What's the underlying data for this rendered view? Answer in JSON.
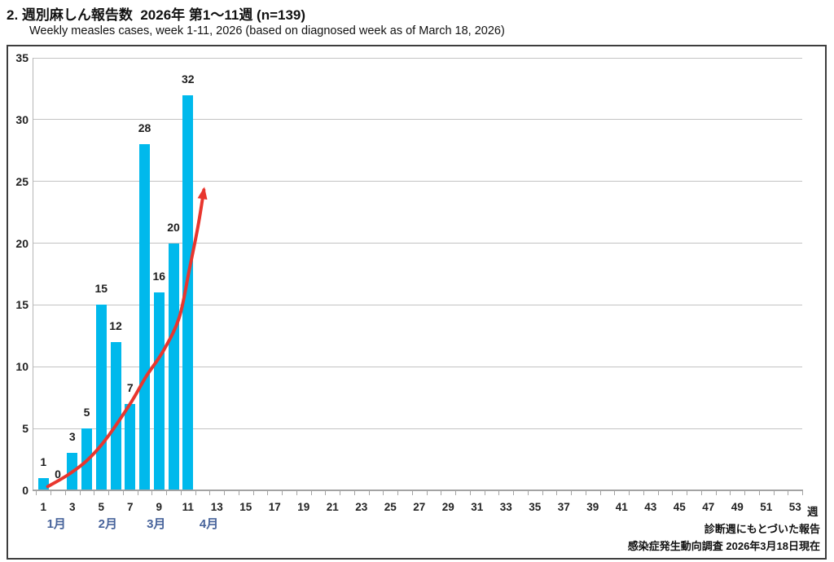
{
  "header": {
    "title": "2. 週別麻しん報告数  2026年 第1～11週 (n=139)",
    "subtitle": "Weekly measles cases, week 1-11, 2026 (based on diagnosed week as of March 18, 2026)"
  },
  "footer": {
    "line1": "診断週にもとづいた報告",
    "line2": "感染症発生動向調査 2026年3月18日現在"
  },
  "chart_data": {
    "type": "bar",
    "title": "2. 週別麻しん報告数  2026年 第1～11週 (n=139)",
    "subtitle": "Weekly measles cases, week 1-11, 2026 (based on diagnosed week as of March 18, 2026)",
    "n_total": 139,
    "xlabel_unit": "週",
    "weeks": [
      1,
      2,
      3,
      4,
      5,
      6,
      7,
      8,
      9,
      10,
      11
    ],
    "values": [
      1,
      0,
      3,
      5,
      15,
      12,
      7,
      28,
      16,
      20,
      32
    ],
    "x_tick_label_weeks": [
      1,
      3,
      5,
      7,
      9,
      11,
      13,
      15,
      17,
      19,
      21,
      23,
      25,
      27,
      29,
      31,
      33,
      35,
      37,
      39,
      41,
      43,
      45,
      47,
      49,
      51,
      53
    ],
    "x_axis_week_count": 53,
    "ylim": [
      0,
      35
    ],
    "y_ticks": [
      0,
      5,
      10,
      15,
      20,
      25,
      30,
      35
    ],
    "grid": true,
    "legend": "none",
    "months": [
      {
        "label": "1月",
        "week": 1.9
      },
      {
        "label": "2月",
        "week": 5.45
      },
      {
        "label": "3月",
        "week": 8.8
      },
      {
        "label": "4月",
        "week": 12.45
      }
    ],
    "trend_arrow": {
      "points_week_value": [
        [
          1.3,
          0.3
        ],
        [
          2.7,
          1.25
        ],
        [
          4.0,
          2.4
        ],
        [
          5.3,
          4.1
        ],
        [
          7.0,
          7.0
        ],
        [
          8.1,
          9.2
        ],
        [
          9.3,
          11.3
        ],
        [
          10.4,
          14.0
        ],
        [
          11.1,
          17.9
        ],
        [
          11.7,
          21.4
        ],
        [
          12.1,
          24.3
        ]
      ],
      "color": "#e8362e"
    },
    "colors": {
      "bar": "#00b9ec",
      "grid": "#c3c3c3",
      "axis": "#a3a3a3",
      "month_label": "#47639b",
      "text": "#1d1d1d"
    }
  }
}
